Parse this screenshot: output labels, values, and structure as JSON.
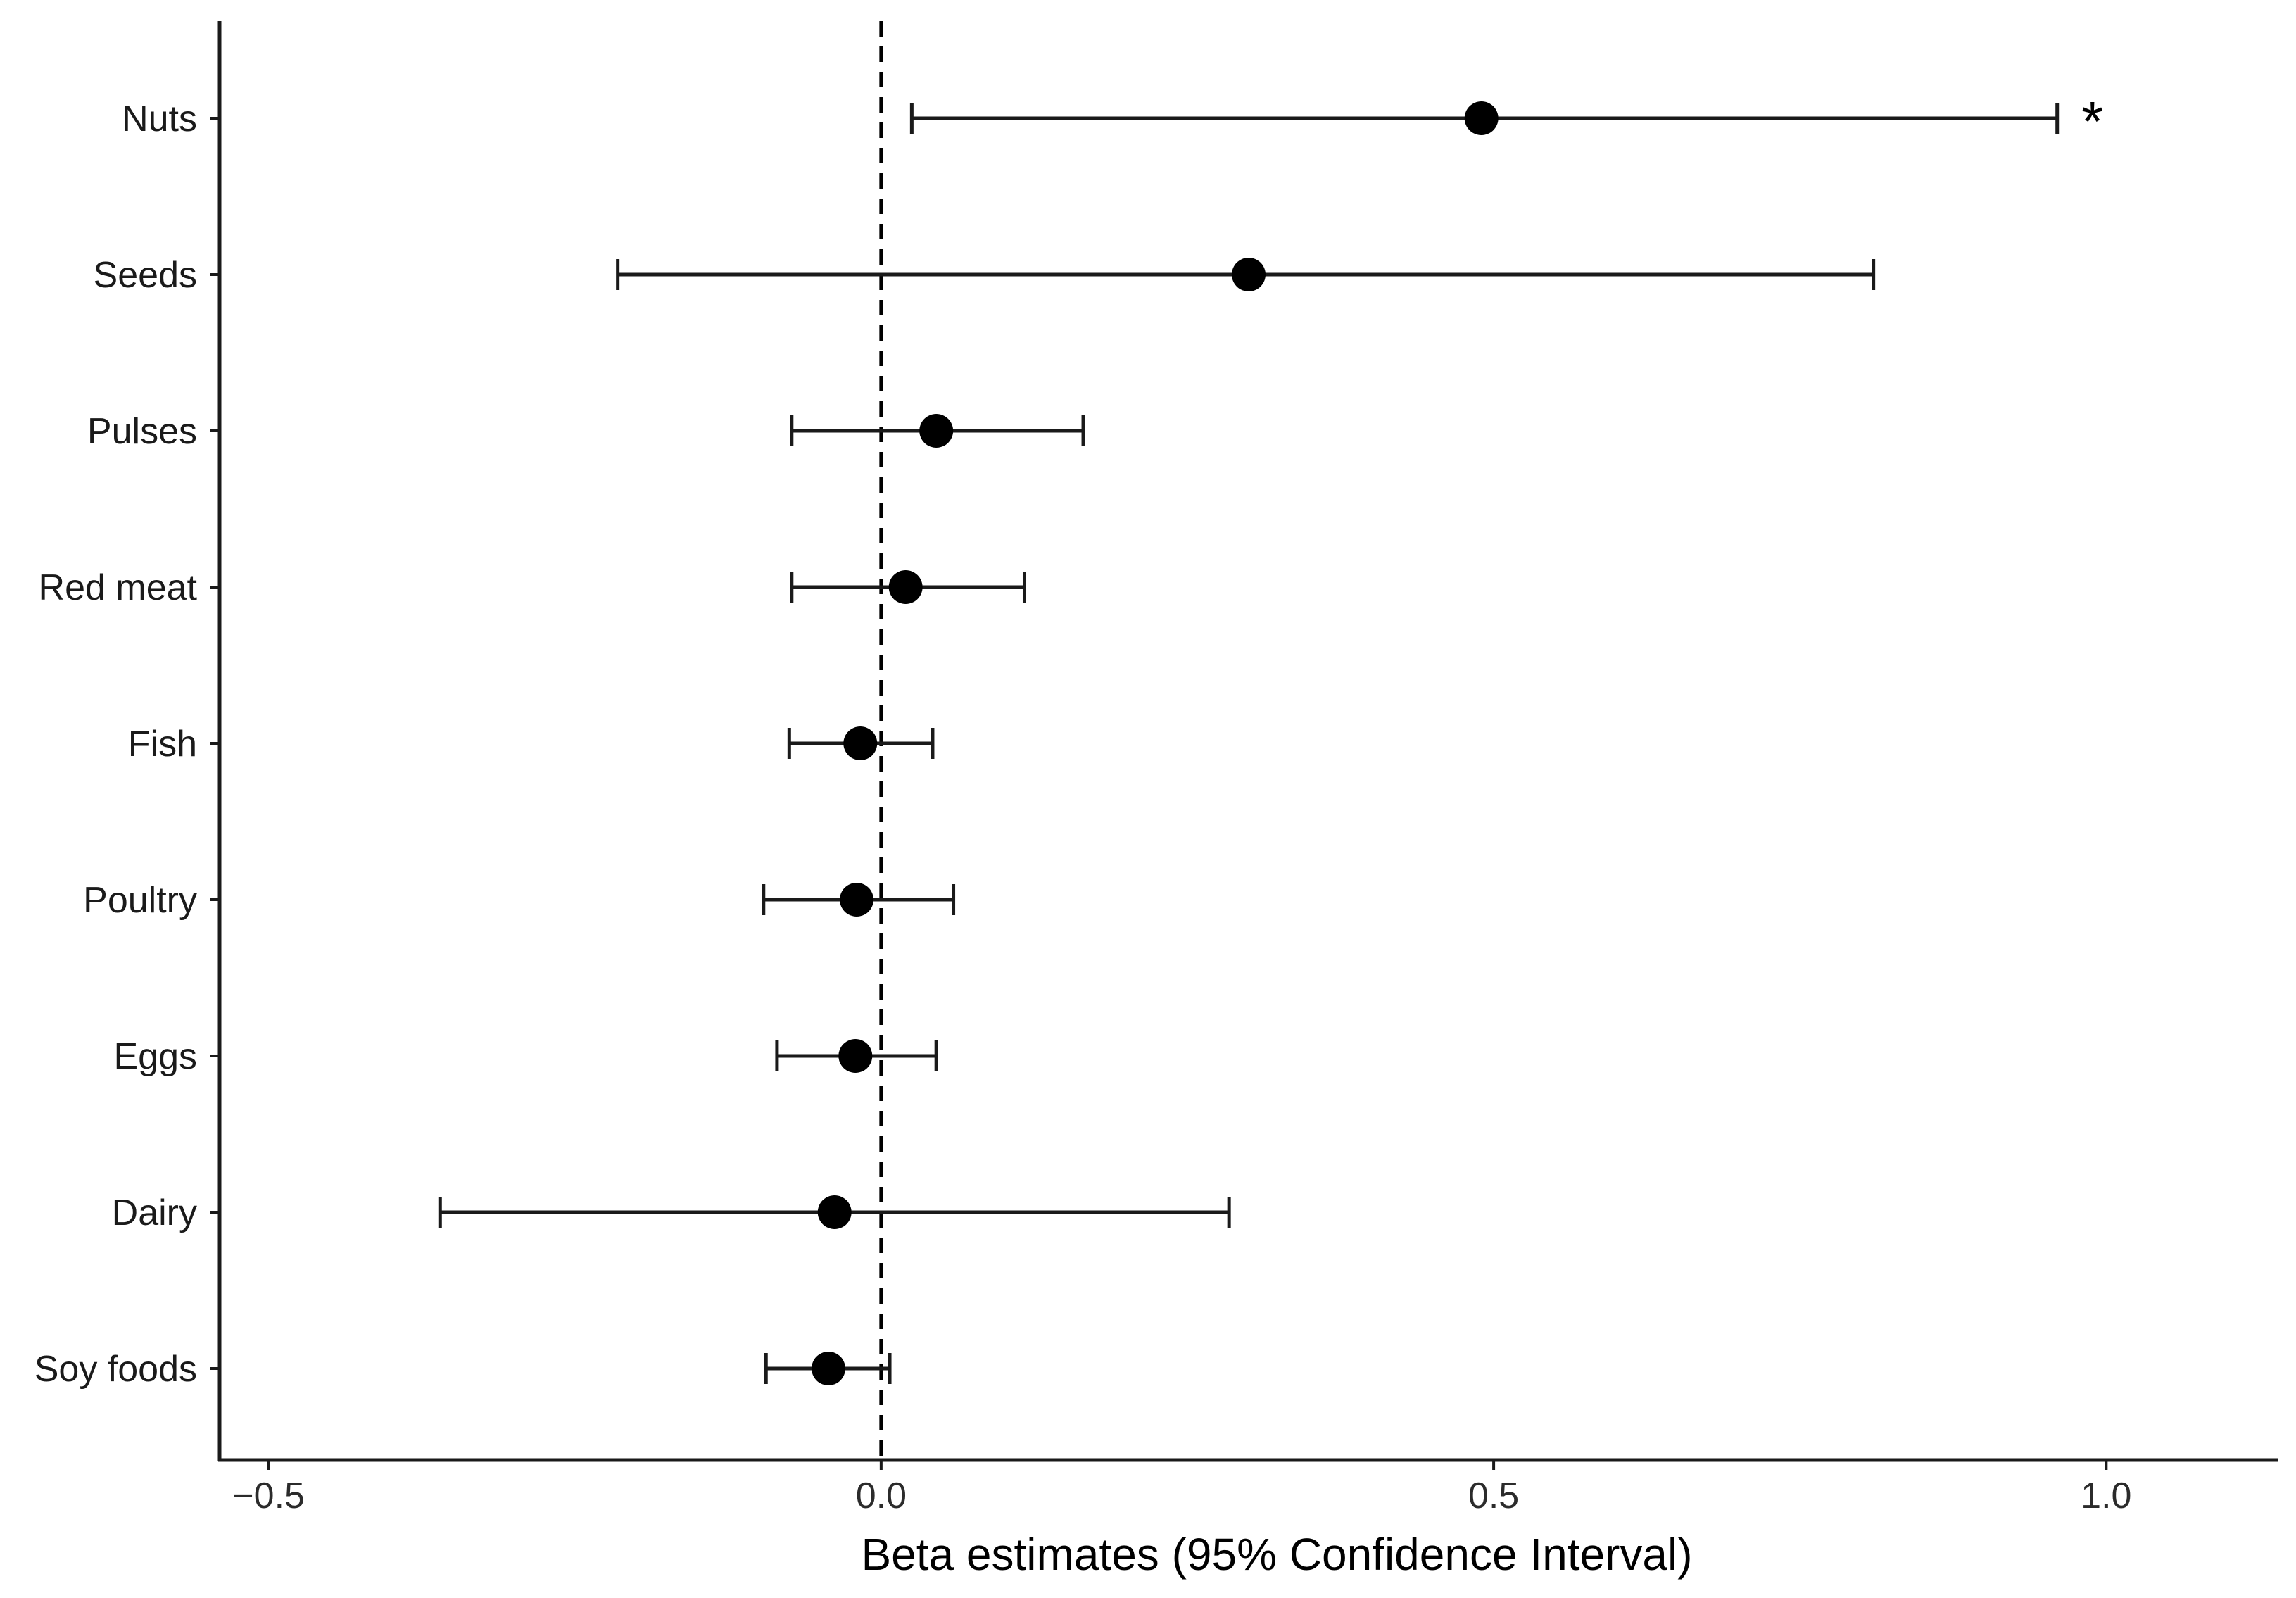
{
  "chart_data": {
    "type": "forest",
    "title": "",
    "xlabel": "Beta estimates (95% Confidence Interval)",
    "ylabel": "",
    "xlim": [
      -0.54,
      1.14
    ],
    "xticks": [
      {
        "value": -0.5,
        "label": "−0.5"
      },
      {
        "value": 0.0,
        "label": "0.0"
      },
      {
        "value": 0.5,
        "label": "0.5"
      },
      {
        "value": 1.0,
        "label": "1.0"
      }
    ],
    "reference_line": {
      "x": 0,
      "style": "dashed"
    },
    "grid": false,
    "legend": "none",
    "point_color": "#000000",
    "categories": [
      "Nuts",
      "Seeds",
      "Pulses",
      "Red meat",
      "Fish",
      "Poultry",
      "Eggs",
      "Dairy",
      "Soy foods"
    ],
    "estimates": [
      0.49,
      0.3,
      0.045,
      0.02,
      -0.017,
      -0.02,
      -0.021,
      -0.038,
      -0.043
    ],
    "ci_lower": [
      0.025,
      -0.215,
      -0.073,
      -0.073,
      -0.075,
      -0.096,
      -0.085,
      -0.36,
      -0.094
    ],
    "ci_upper": [
      0.96,
      0.81,
      0.165,
      0.117,
      0.042,
      0.059,
      0.045,
      0.284,
      0.007
    ],
    "annotations": [
      {
        "category": "Nuts",
        "text": "*"
      }
    ]
  }
}
